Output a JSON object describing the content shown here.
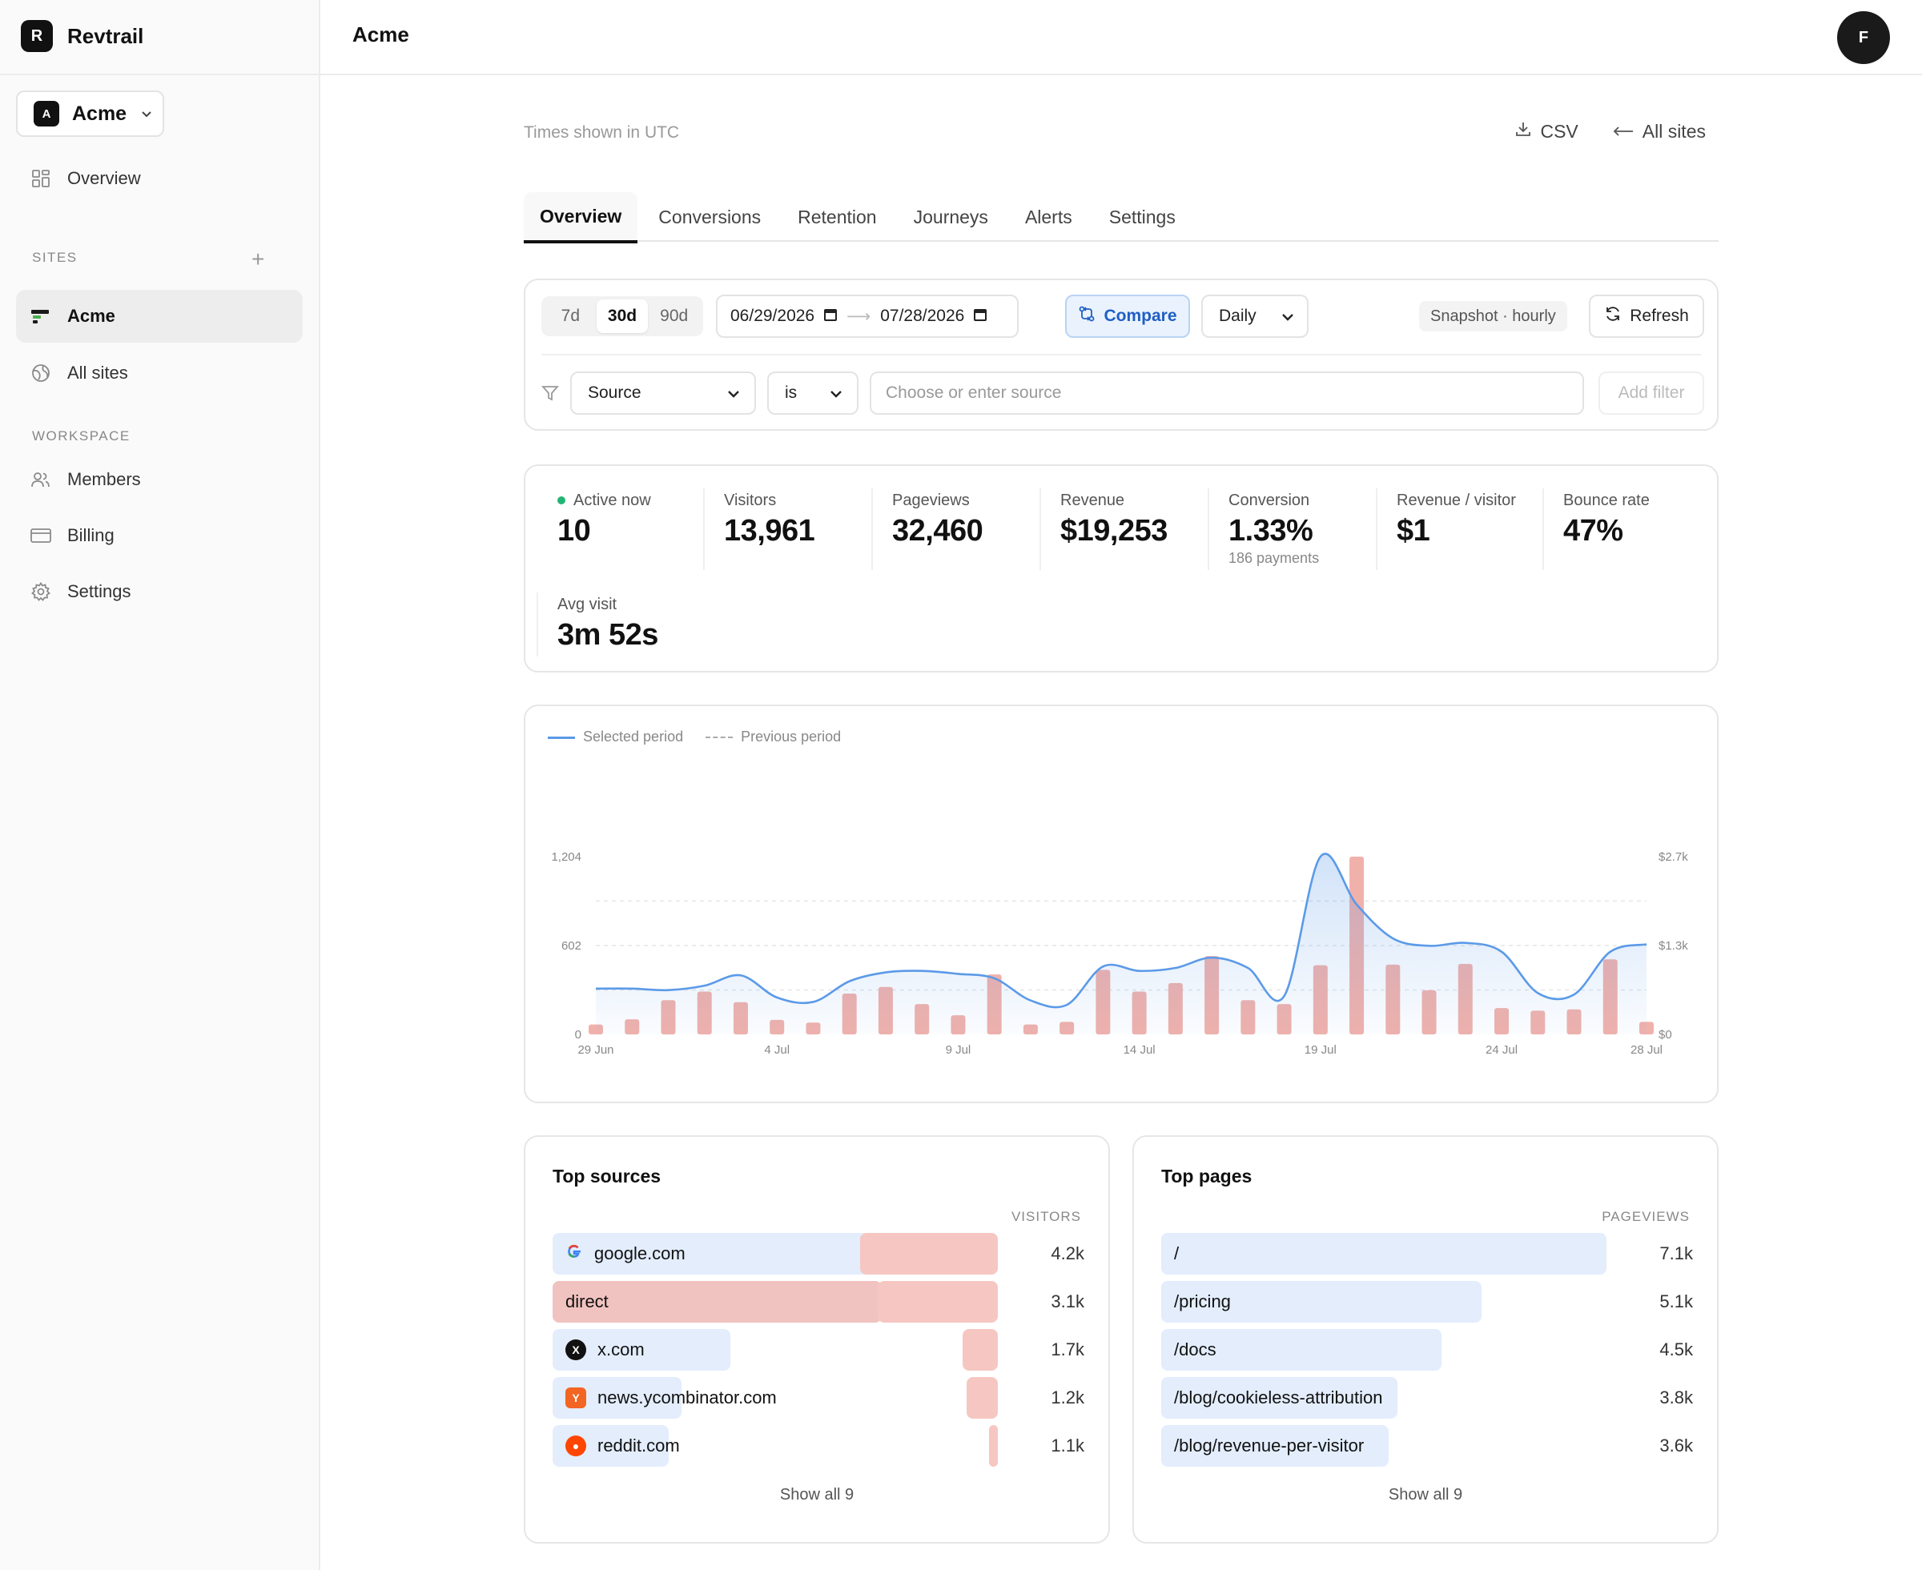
{
  "brand": {
    "logo_letter": "R",
    "name": "Revtrail"
  },
  "site_switcher": {
    "letter": "A",
    "label": "Acme"
  },
  "sidebar": {
    "overview": "Overview",
    "sites_label": "SITES",
    "sites": [
      {
        "label": "Acme"
      },
      {
        "label": "All sites"
      }
    ],
    "workspace_label": "WORKSPACE",
    "workspace": [
      {
        "label": "Members"
      },
      {
        "label": "Billing"
      },
      {
        "label": "Settings"
      }
    ]
  },
  "header": {
    "title": "Acme",
    "avatar": "F"
  },
  "main": {
    "timezone_note": "Times shown in UTC",
    "csv": "CSV",
    "all_sites": "All sites",
    "tabs": [
      "Overview",
      "Conversions",
      "Retention",
      "Journeys",
      "Alerts",
      "Settings"
    ]
  },
  "controls": {
    "ranges": [
      "7d",
      "30d",
      "90d"
    ],
    "selected_range": "30d",
    "date_from": "06/29/2026",
    "date_to": "07/28/2026",
    "compare": "Compare",
    "granularity": "Daily",
    "snapshot": "Snapshot · hourly",
    "refresh": "Refresh",
    "filter_field": "Source",
    "filter_op": "is",
    "filter_placeholder": "Choose or enter source",
    "add_filter": "Add filter"
  },
  "stats": [
    {
      "label": "Active now",
      "value": "10"
    },
    {
      "label": "Visitors",
      "value": "13,961"
    },
    {
      "label": "Pageviews",
      "value": "32,460"
    },
    {
      "label": "Revenue",
      "value": "$19,253"
    },
    {
      "label": "Conversion",
      "value": "1.33%",
      "sub": "186 payments"
    },
    {
      "label": "Revenue / visitor",
      "value": "$1"
    },
    {
      "label": "Bounce rate",
      "value": "47%"
    },
    {
      "label": "Avg visit",
      "value": "3m 52s"
    }
  ],
  "chart_data": {
    "type": "line",
    "legend": [
      "Selected period",
      "Previous period"
    ],
    "x": [
      "29 Jun",
      "30 Jun",
      "1 Jul",
      "2 Jul",
      "3 Jul",
      "4 Jul",
      "5 Jul",
      "6 Jul",
      "7 Jul",
      "8 Jul",
      "9 Jul",
      "10 Jul",
      "11 Jul",
      "12 Jul",
      "13 Jul",
      "14 Jul",
      "15 Jul",
      "16 Jul",
      "17 Jul",
      "18 Jul",
      "19 Jul",
      "20 Jul",
      "21 Jul",
      "22 Jul",
      "23 Jul",
      "24 Jul",
      "25 Jul",
      "26 Jul",
      "27 Jul",
      "28 Jul"
    ],
    "x_tick_labels": [
      "29 Jun",
      "4 Jul",
      "9 Jul",
      "14 Jul",
      "19 Jul",
      "24 Jul",
      "28 Jul"
    ],
    "y_left_ticks": [
      "1,204",
      "602",
      "0"
    ],
    "y_right_ticks": [
      "$2.7k",
      "$1.3k",
      "$0"
    ],
    "ylim_left": [
      0,
      1204
    ],
    "ylim_right": [
      0,
      2700
    ],
    "series": [
      {
        "name": "Selected period",
        "axis": "left",
        "style": "line",
        "color": "#5b9ae8",
        "values": [
          310,
          310,
          300,
          330,
          400,
          250,
          220,
          360,
          420,
          430,
          410,
          380,
          230,
          200,
          460,
          430,
          450,
          520,
          450,
          260,
          1204,
          880,
          650,
          600,
          620,
          560,
          280,
          270,
          560,
          610
        ]
      },
      {
        "name": "Revenue",
        "axis": "right",
        "style": "bar",
        "color": "#f1b1ab",
        "values": [
          150,
          230,
          520,
          650,
          490,
          220,
          180,
          620,
          720,
          460,
          290,
          910,
          150,
          190,
          980,
          650,
          780,
          1190,
          520,
          460,
          1050,
          2700,
          1060,
          670,
          1070,
          400,
          360,
          380,
          1140,
          190
        ]
      }
    ]
  },
  "top_sources": {
    "title": "Top sources",
    "column": "VISITORS",
    "show_all": "Show all 9",
    "rows": [
      {
        "name": "google.com",
        "icon": "google-icon",
        "value": "4.2k"
      },
      {
        "name": "direct",
        "icon": "",
        "value": "3.1k"
      },
      {
        "name": "x.com",
        "icon": "x-icon",
        "value": "1.7k"
      },
      {
        "name": "news.ycombinator.com",
        "icon": "ycombinator-icon",
        "value": "1.2k"
      },
      {
        "name": "reddit.com",
        "icon": "reddit-icon",
        "value": "1.1k"
      }
    ],
    "visitor_share": [
      1.0,
      0.74,
      0.4,
      0.29,
      0.26
    ],
    "revenue_share": [
      0.31,
      0.27,
      0.08,
      0.07,
      0.02
    ]
  },
  "top_pages": {
    "title": "Top pages",
    "column": "PAGEVIEWS",
    "show_all": "Show all 9",
    "rows": [
      {
        "name": "/",
        "value": "7.1k"
      },
      {
        "name": "/pricing",
        "value": "5.1k"
      },
      {
        "name": "/docs",
        "value": "4.5k"
      },
      {
        "name": "/blog/cookieless-attribution",
        "value": "3.8k"
      },
      {
        "name": "/blog/revenue-per-visitor",
        "value": "3.6k"
      }
    ],
    "share": [
      1.0,
      0.72,
      0.63,
      0.53,
      0.51
    ]
  }
}
